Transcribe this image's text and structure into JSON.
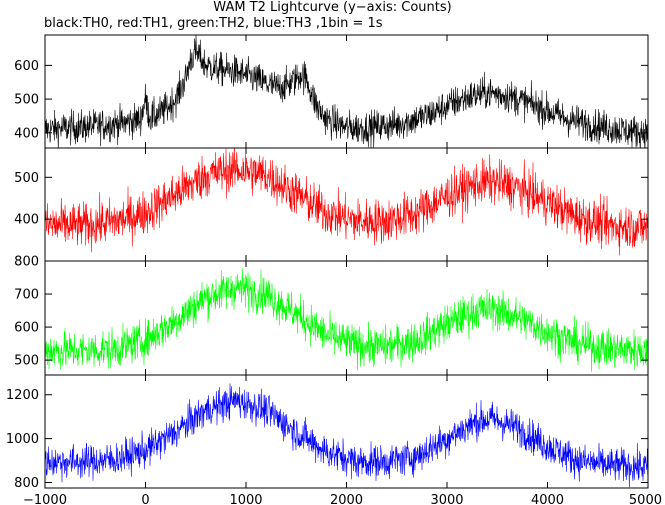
{
  "title": "WAM T2 Lightcurve (y−axis: Counts)",
  "subtitle": "black:TH0, red:TH1, green:TH2, blue:TH3 ,1bin = 1s",
  "chart_data": {
    "type": "line",
    "title": "WAM T2 Lightcurve (y−axis: Counts)",
    "subtitle": "black:TH0, red:TH1, green:TH2, blue:TH3 ,1bin = 1s",
    "xlabel": "",
    "ylabel": "",
    "xlim": [
      -1000,
      5000
    ],
    "x_ticks": [
      -1000,
      0,
      1000,
      2000,
      3000,
      4000,
      5000
    ],
    "x_tick_labels": [
      "−1000",
      "0",
      "1000",
      "2000",
      "3000",
      "4000",
      "5000"
    ],
    "grid": false,
    "bin_seconds": 1,
    "panels": [
      {
        "name": "TH0",
        "color": "#000000",
        "ylim": [
          355,
          690
        ],
        "y_ticks": [
          400,
          500,
          600
        ],
        "y_tick_labels": [
          "400",
          "500",
          "600"
        ],
        "noise_amplitude": 35,
        "trend": {
          "x": [
            -1000,
            -500,
            -200,
            -50,
            0,
            20,
            50,
            100,
            200,
            300,
            400,
            450,
            500,
            550,
            600,
            700,
            800,
            900,
            1000,
            1100,
            1200,
            1300,
            1400,
            1500,
            1550,
            1600,
            1650,
            1700,
            1800,
            2000,
            2200,
            2500,
            2800,
            3000,
            3200,
            3400,
            3600,
            3800,
            4000,
            4200,
            4500,
            4800,
            5000
          ],
          "y": [
            410,
            420,
            430,
            440,
            500,
            470,
            445,
            450,
            470,
            500,
            560,
            620,
            640,
            620,
            600,
            590,
            585,
            580,
            570,
            560,
            545,
            535,
            540,
            560,
            575,
            560,
            520,
            480,
            440,
            415,
            415,
            425,
            450,
            480,
            505,
            520,
            510,
            490,
            465,
            440,
            420,
            405,
            400
          ]
        }
      },
      {
        "name": "TH1",
        "color": "#ff0000",
        "ylim": [
          300,
          570
        ],
        "y_ticks": [
          400,
          500
        ],
        "y_tick_labels": [
          "400",
          "500"
        ],
        "noise_amplitude": 38,
        "trend": {
          "x": [
            -1000,
            -600,
            -300,
            0,
            300,
            600,
            900,
            1200,
            1500,
            1800,
            2100,
            2400,
            2700,
            3000,
            3300,
            3450,
            3700,
            4000,
            4300,
            4600,
            5000
          ],
          "y": [
            385,
            385,
            395,
            415,
            460,
            505,
            520,
            505,
            460,
            415,
            395,
            395,
            415,
            455,
            485,
            490,
            475,
            440,
            405,
            385,
            380
          ]
        }
      },
      {
        "name": "TH2",
        "color": "#00ff00",
        "ylim": [
          455,
          800
        ],
        "y_ticks": [
          500,
          600,
          700,
          800
        ],
        "y_tick_labels": [
          "500",
          "600",
          "700",
          "800"
        ],
        "noise_amplitude": 42,
        "trend": {
          "x": [
            -1000,
            -600,
            -300,
            0,
            300,
            600,
            900,
            1200,
            1500,
            1800,
            2100,
            2400,
            2700,
            3000,
            3300,
            3450,
            3700,
            4000,
            4300,
            4600,
            5000
          ],
          "y": [
            530,
            528,
            535,
            560,
            620,
            690,
            720,
            700,
            640,
            575,
            545,
            540,
            560,
            610,
            650,
            655,
            630,
            585,
            550,
            535,
            530
          ]
        }
      },
      {
        "name": "TH3",
        "color": "#0000ff",
        "ylim": [
          775,
          1290
        ],
        "y_ticks": [
          800,
          1000,
          1200
        ],
        "y_tick_labels": [
          "800",
          "1000",
          "1200"
        ],
        "noise_amplitude": 55,
        "trend": {
          "x": [
            -1000,
            -600,
            -300,
            0,
            300,
            600,
            900,
            1200,
            1500,
            1800,
            2100,
            2400,
            2700,
            3000,
            3300,
            3450,
            3700,
            4000,
            4300,
            4600,
            5000
          ],
          "y": [
            895,
            895,
            905,
            945,
            1030,
            1130,
            1175,
            1130,
            1030,
            940,
            895,
            895,
            920,
            1000,
            1080,
            1090,
            1050,
            965,
            900,
            880,
            870
          ]
        }
      }
    ]
  }
}
